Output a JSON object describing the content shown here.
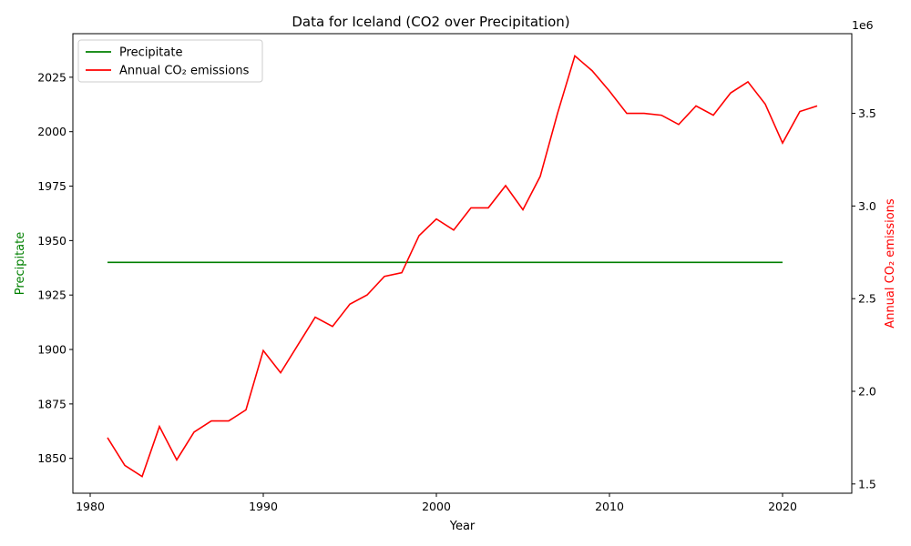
{
  "chart_data": {
    "type": "line",
    "title": "Data for Iceland (CO2 over Precipitation)",
    "xlabel": "Year",
    "ylabel_left": "Precipitate",
    "ylabel_right": "Annual CO₂ emissions",
    "right_offset_label": "1e6",
    "xlim": [
      1979,
      2024
    ],
    "ylim_left": [
      1834,
      2045
    ],
    "ylim_right": [
      1.45,
      3.93
    ],
    "x_ticks": [
      1980,
      1990,
      2000,
      2010,
      2020
    ],
    "y_ticks_left": [
      1850,
      1875,
      1900,
      1925,
      1950,
      1975,
      2000,
      2025
    ],
    "y_ticks_right": [
      1.5,
      2.0,
      2.5,
      3.0,
      3.5
    ],
    "legend_position": "upper-left",
    "colors": {
      "precipitate": "#008000",
      "co2": "#ff0000"
    },
    "series": [
      {
        "name": "Precipitate",
        "axis": "left",
        "x": [
          1981,
          2020
        ],
        "values": [
          1940,
          1940
        ]
      },
      {
        "name": "Annual CO₂ emissions",
        "axis": "right",
        "x": [
          1981,
          1982,
          1983,
          1984,
          1985,
          1986,
          1987,
          1988,
          1989,
          1990,
          1991,
          1992,
          1993,
          1994,
          1995,
          1996,
          1997,
          1998,
          1999,
          2000,
          2001,
          2002,
          2003,
          2004,
          2005,
          2006,
          2007,
          2008,
          2009,
          2010,
          2011,
          2012,
          2013,
          2014,
          2015,
          2016,
          2017,
          2018,
          2019,
          2020,
          2021,
          2022
        ],
        "values": [
          1.75,
          1.6,
          1.54,
          1.81,
          1.63,
          1.78,
          1.84,
          1.84,
          1.9,
          2.22,
          2.1,
          2.25,
          2.4,
          2.35,
          2.47,
          2.52,
          2.62,
          2.64,
          2.84,
          2.93,
          2.87,
          2.99,
          2.99,
          3.11,
          2.98,
          3.16,
          3.5,
          3.81,
          3.73,
          3.62,
          3.5,
          3.5,
          3.49,
          3.44,
          3.54,
          3.49,
          3.61,
          3.67,
          3.55,
          3.34,
          3.51,
          3.54
        ]
      }
    ]
  }
}
